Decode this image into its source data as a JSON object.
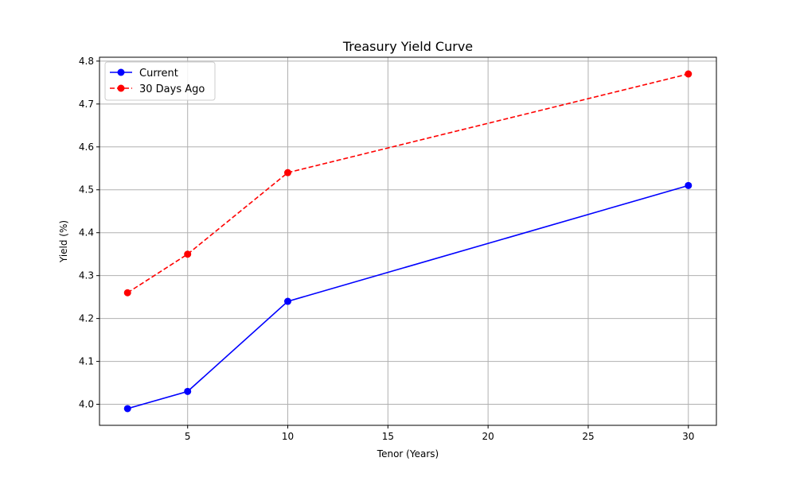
{
  "chart_data": {
    "type": "line",
    "title": "Treasury Yield Curve",
    "xlabel": "Tenor (Years)",
    "ylabel": "Yield (%)",
    "xlim": [
      0.6,
      31.4
    ],
    "ylim": [
      3.951,
      4.809
    ],
    "xticks": [
      5,
      10,
      15,
      20,
      25,
      30
    ],
    "yticks": [
      4.0,
      4.1,
      4.2,
      4.3,
      4.4,
      4.5,
      4.6,
      4.7,
      4.8
    ],
    "grid": true,
    "legend_position": "top-left",
    "x": [
      2,
      5,
      10,
      30
    ],
    "series": [
      {
        "name": "Current",
        "values": [
          3.99,
          4.03,
          4.24,
          4.51
        ],
        "color": "#0000ff",
        "linestyle": "solid",
        "marker": "circle"
      },
      {
        "name": "30 Days Ago",
        "values": [
          4.26,
          4.35,
          4.54,
          4.77
        ],
        "color": "#ff0000",
        "linestyle": "dashed",
        "marker": "circle"
      }
    ]
  }
}
